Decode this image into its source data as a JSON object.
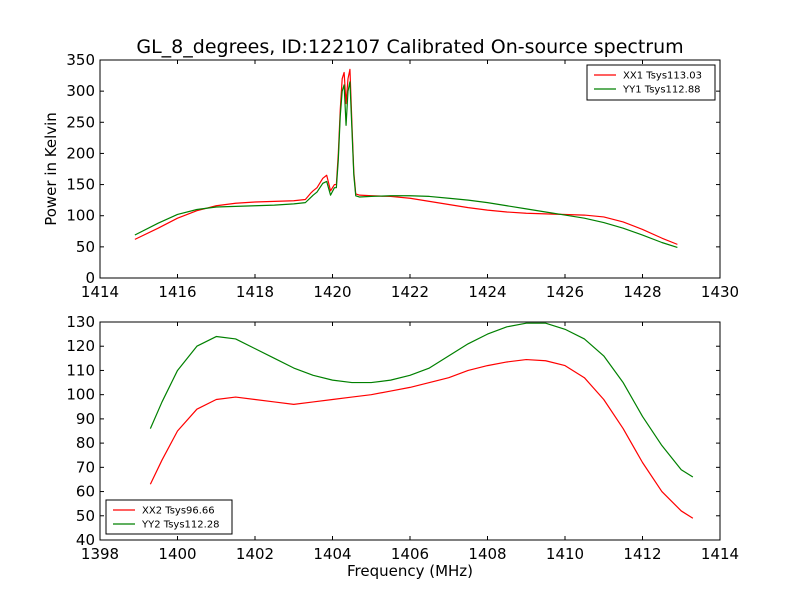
{
  "figure": {
    "title": "GL_8_degrees, ID:122107 Calibrated On-source spectrum"
  },
  "colors": {
    "red": "#ff0000",
    "green": "#008000"
  },
  "chart_data": [
    {
      "type": "line",
      "xlabel": "",
      "ylabel": "Power in Kelvin",
      "xlim": [
        1414,
        1430
      ],
      "ylim": [
        0,
        350
      ],
      "xticks": [
        1414,
        1416,
        1418,
        1420,
        1422,
        1424,
        1426,
        1428,
        1430
      ],
      "yticks": [
        0,
        50,
        100,
        150,
        200,
        250,
        300,
        350
      ],
      "legend_position": "top-right",
      "series": [
        {
          "name": "XX1 Tsys113.03",
          "color": "#ff0000",
          "x": [
            1414.9,
            1415.5,
            1416,
            1416.5,
            1417,
            1417.5,
            1418,
            1418.5,
            1419,
            1419.3,
            1419.45,
            1419.5,
            1419.6,
            1419.75,
            1419.85,
            1419.95,
            1420.05,
            1420.1,
            1420.15,
            1420.2,
            1420.25,
            1420.3,
            1420.35,
            1420.4,
            1420.45,
            1420.5,
            1420.55,
            1420.6,
            1420.7,
            1421,
            1421.5,
            1422,
            1422.5,
            1423,
            1423.5,
            1424,
            1424.5,
            1425,
            1425.5,
            1426,
            1426.5,
            1427,
            1427.5,
            1428,
            1428.5,
            1428.9
          ],
          "y": [
            62,
            80,
            96,
            108,
            116,
            120,
            122,
            123,
            124,
            126,
            137,
            140,
            145,
            160,
            165,
            140,
            150,
            150,
            200,
            270,
            320,
            330,
            280,
            320,
            335,
            250,
            170,
            135,
            133,
            132,
            131,
            128,
            123,
            118,
            113,
            109,
            106,
            104,
            103,
            102,
            101,
            98,
            90,
            78,
            64,
            54
          ]
        },
        {
          "name": "YY1 Tsys112.88",
          "color": "#008000",
          "x": [
            1414.9,
            1415.5,
            1416,
            1416.5,
            1417,
            1417.5,
            1418,
            1418.5,
            1419,
            1419.3,
            1419.45,
            1419.5,
            1419.6,
            1419.75,
            1419.85,
            1419.95,
            1420.05,
            1420.1,
            1420.15,
            1420.2,
            1420.25,
            1420.3,
            1420.35,
            1420.4,
            1420.45,
            1420.5,
            1420.55,
            1420.6,
            1420.7,
            1421,
            1421.5,
            1422,
            1422.5,
            1423,
            1423.5,
            1424,
            1424.5,
            1425,
            1425.5,
            1426,
            1426.5,
            1427,
            1427.5,
            1428,
            1428.5,
            1428.9
          ],
          "y": [
            69,
            88,
            102,
            110,
            114,
            115,
            116,
            117,
            119,
            121,
            130,
            133,
            138,
            152,
            155,
            133,
            145,
            145,
            190,
            260,
            300,
            310,
            245,
            300,
            315,
            240,
            165,
            132,
            130,
            131,
            132,
            132,
            131,
            128,
            125,
            121,
            116,
            111,
            106,
            101,
            96,
            89,
            80,
            69,
            57,
            49
          ]
        }
      ]
    },
    {
      "type": "line",
      "xlabel": "Frequency (MHz)",
      "ylabel": "",
      "xlim": [
        1398,
        1414
      ],
      "ylim": [
        40,
        130
      ],
      "xticks": [
        1398,
        1400,
        1402,
        1404,
        1406,
        1408,
        1410,
        1412,
        1414
      ],
      "yticks": [
        40,
        50,
        60,
        70,
        80,
        90,
        100,
        110,
        120,
        130
      ],
      "legend_position": "bottom-left",
      "series": [
        {
          "name": "XX2 Tsys96.66",
          "color": "#ff0000",
          "x": [
            1399.3,
            1399.6,
            1400,
            1400.5,
            1401,
            1401.5,
            1402,
            1402.5,
            1403,
            1403.5,
            1404,
            1404.5,
            1405,
            1405.5,
            1406,
            1406.5,
            1407,
            1407.5,
            1408,
            1408.5,
            1409,
            1409.5,
            1410,
            1410.5,
            1411,
            1411.5,
            1412,
            1412.5,
            1413,
            1413.3
          ],
          "y": [
            63,
            73,
            85,
            94,
            98,
            99,
            98,
            97,
            96,
            97,
            98,
            99,
            100,
            101.5,
            103,
            105,
            107,
            110,
            112,
            113.5,
            114.5,
            114,
            112,
            107,
            98,
            86,
            72,
            60,
            52,
            49
          ]
        },
        {
          "name": "YY2 Tsys112.28",
          "color": "#008000",
          "x": [
            1399.3,
            1399.6,
            1400,
            1400.5,
            1401,
            1401.5,
            1402,
            1402.5,
            1403,
            1403.5,
            1404,
            1404.5,
            1405,
            1405.5,
            1406,
            1406.5,
            1407,
            1407.5,
            1408,
            1408.5,
            1409,
            1409.5,
            1410,
            1410.5,
            1411,
            1411.5,
            1412,
            1412.5,
            1413,
            1413.3
          ],
          "y": [
            86,
            97,
            110,
            120,
            124,
            123,
            119,
            115,
            111,
            108,
            106,
            105,
            105,
            106,
            108,
            111,
            116,
            121,
            125,
            128,
            129.5,
            129.5,
            127,
            123,
            116,
            105,
            91,
            79,
            69,
            66
          ]
        }
      ]
    }
  ]
}
